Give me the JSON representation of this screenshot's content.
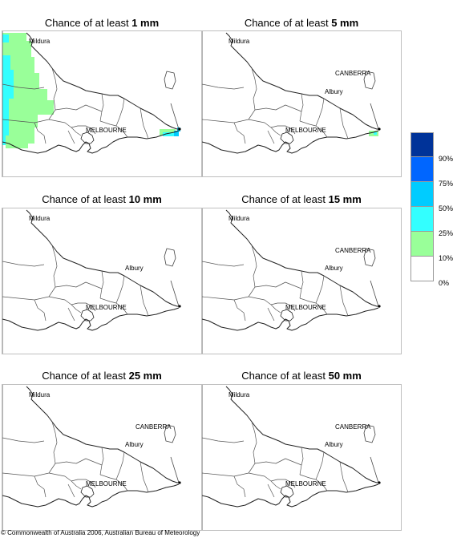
{
  "panels": [
    {
      "prefix": "Chance of at least ",
      "amount": "1 mm"
    },
    {
      "prefix": "Chance of at least ",
      "amount": "5 mm"
    },
    {
      "prefix": "Chance of at least ",
      "amount": "10 mm"
    },
    {
      "prefix": "Chance of at least ",
      "amount": "15 mm"
    },
    {
      "prefix": "Chance of at least ",
      "amount": "25 mm"
    },
    {
      "prefix": "Chance of at least ",
      "amount": "50 mm"
    }
  ],
  "places": {
    "mildura": "Mildura",
    "canberra": "CANBERRA",
    "albury": "Albury",
    "melbourne": "MELBOURNE"
  },
  "legend": {
    "labels": [
      "90%",
      "75%",
      "50%",
      "25%",
      "10%",
      "0%"
    ],
    "colors": [
      "#003399",
      "#0066ff",
      "#00ccff",
      "#33ffff",
      "#99ff99",
      "#ffffff"
    ]
  },
  "copyright": "© Commonwealth of Australia 2006, Australian Bureau of Meteorology"
}
